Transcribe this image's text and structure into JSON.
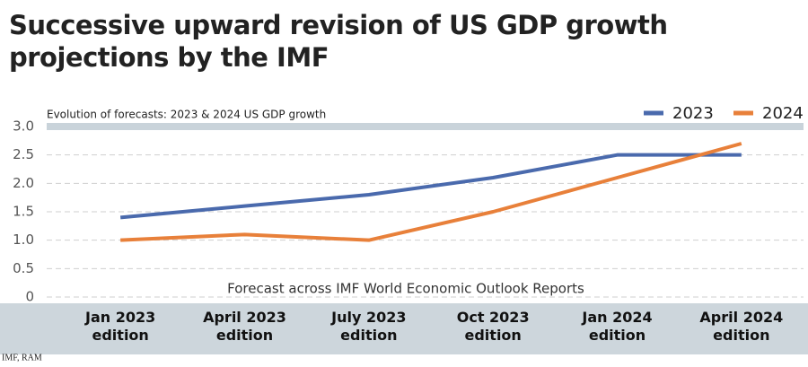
{
  "chart_data": {
    "type": "line",
    "title": "Successive upward revision of US GDP growth projections by the IMF",
    "subtitle": "Evolution of forecasts: 2023 & 2024 US GDP growth",
    "x_label": "Forecast across IMF World Economic Outlook Reports",
    "source": "IMF, RAM",
    "categories": [
      "Jan 2023 edition",
      "April 2023 edition",
      "July 2023 edition",
      "Oct 2023 edition",
      "Jan 2024 edition",
      "April 2024 edition"
    ],
    "series": [
      {
        "name": "2023",
        "color": "#4a6aad",
        "values": [
          1.4,
          1.6,
          1.8,
          2.1,
          2.5,
          2.5
        ]
      },
      {
        "name": "2024",
        "color": "#e8803a",
        "values": [
          1.0,
          1.1,
          1.0,
          1.5,
          2.1,
          2.7
        ]
      }
    ],
    "ylim": [
      0,
      3
    ],
    "yticks": [
      0,
      0.5,
      {
        "value": 1,
        "label": "1.0"
      },
      1.5,
      {
        "value": 2,
        "label": "2.0"
      },
      2.5,
      {
        "value": 3,
        "label": "3.0"
      }
    ],
    "grid": true,
    "legend": "top-right"
  }
}
